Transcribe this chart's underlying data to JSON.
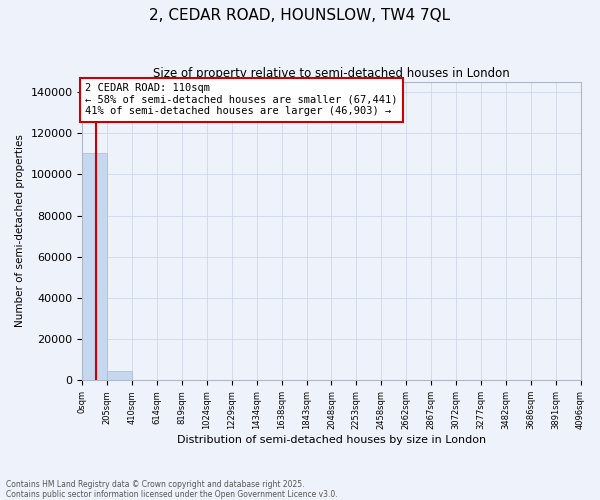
{
  "title": "2, CEDAR ROAD, HOUNSLOW, TW4 7QL",
  "subtitle": "Size of property relative to semi-detached houses in London",
  "xlabel": "Distribution of semi-detached houses by size in London",
  "ylabel": "Number of semi-detached properties",
  "annotation_text_line1": "2 CEDAR ROAD: 110sqm",
  "annotation_text_line2": "← 58% of semi-detached houses are smaller (67,441)",
  "annotation_text_line3": "41% of semi-detached houses are larger (46,903) →",
  "bar_color": "#c5d8f0",
  "bar_edge_color": "#a0bcd8",
  "bar_heights": [
    110344,
    4557,
    0,
    0,
    0,
    0,
    0,
    0,
    0,
    0,
    0,
    0,
    0,
    0,
    0,
    0,
    0,
    0,
    0,
    0
  ],
  "bin_edges": [
    0,
    205,
    410,
    614,
    819,
    1024,
    1229,
    1434,
    1638,
    1843,
    2048,
    2253,
    2458,
    2662,
    2867,
    3072,
    3277,
    3482,
    3686,
    3891,
    4096
  ],
  "tick_labels": [
    "0sqm",
    "205sqm",
    "410sqm",
    "614sqm",
    "819sqm",
    "1024sqm",
    "1229sqm",
    "1434sqm",
    "1638sqm",
    "1843sqm",
    "2048sqm",
    "2253sqm",
    "2458sqm",
    "2662sqm",
    "2867sqm",
    "3072sqm",
    "3277sqm",
    "3482sqm",
    "3686sqm",
    "3891sqm",
    "4096sqm"
  ],
  "ylim": [
    0,
    145000
  ],
  "yticks": [
    0,
    20000,
    40000,
    60000,
    80000,
    100000,
    120000,
    140000
  ],
  "red_line_x": 110,
  "annotation_box_facecolor": "white",
  "annotation_box_edgecolor": "#cc0000",
  "grid_color": "#d0d8e8",
  "background_color": "#eef2fa",
  "footer_line1": "Contains HM Land Registry data © Crown copyright and database right 2025.",
  "footer_line2": "Contains public sector information licensed under the Open Government Licence v3.0."
}
